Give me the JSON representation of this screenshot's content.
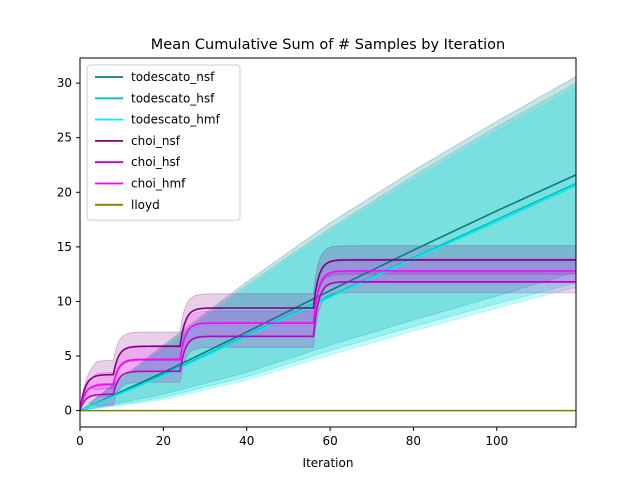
{
  "chart_data": {
    "type": "line",
    "title": "Mean Cumulative Sum of # Samples by Iteration",
    "xlabel": "Iteration",
    "ylabel": "",
    "xlim": [
      0,
      119
    ],
    "ylim": [
      -1.5,
      32.3
    ],
    "xticks": [
      0,
      20,
      40,
      60,
      80,
      100
    ],
    "yticks": [
      0,
      5,
      10,
      15,
      20,
      25,
      30
    ],
    "grid": false,
    "legend_position": "top-left",
    "series": [
      {
        "name": "todescato_nsf",
        "color": "#008080",
        "points": [
          [
            0,
            0
          ],
          [
            20,
            3.5
          ],
          [
            40,
            7.2
          ],
          [
            60,
            11.0
          ],
          [
            80,
            14.7
          ],
          [
            100,
            18.3
          ],
          [
            119,
            21.6
          ]
        ],
        "band_upper": [
          [
            0,
            0
          ],
          [
            20,
            6.0
          ],
          [
            40,
            11.8
          ],
          [
            60,
            17.2
          ],
          [
            80,
            22.0
          ],
          [
            100,
            26.5
          ],
          [
            119,
            30.6
          ]
        ],
        "band_lower": [
          [
            0,
            0
          ],
          [
            20,
            1.5
          ],
          [
            40,
            3.5
          ],
          [
            60,
            6.0
          ],
          [
            80,
            8.3
          ],
          [
            100,
            10.5
          ],
          [
            119,
            12.7
          ]
        ]
      },
      {
        "name": "todescato_hsf",
        "color": "#00bfbf",
        "points": [
          [
            0,
            0
          ],
          [
            20,
            3.3
          ],
          [
            40,
            6.9
          ],
          [
            60,
            10.5
          ],
          [
            80,
            14.0
          ],
          [
            100,
            17.5
          ],
          [
            119,
            20.8
          ]
        ],
        "band_upper": [
          [
            0,
            0
          ],
          [
            20,
            5.8
          ],
          [
            40,
            11.5
          ],
          [
            60,
            16.7
          ],
          [
            80,
            21.5
          ],
          [
            100,
            26.0
          ],
          [
            119,
            30.0
          ]
        ],
        "band_lower": [
          [
            0,
            0
          ],
          [
            20,
            1.2
          ],
          [
            40,
            3.1
          ],
          [
            60,
            5.5
          ],
          [
            80,
            7.7
          ],
          [
            100,
            9.8
          ],
          [
            119,
            11.7
          ]
        ]
      },
      {
        "name": "todescato_hmf",
        "color": "#00eeee",
        "points": [
          [
            0,
            0
          ],
          [
            20,
            3.2
          ],
          [
            40,
            6.8
          ],
          [
            60,
            10.4
          ],
          [
            80,
            13.9
          ],
          [
            100,
            17.3
          ],
          [
            119,
            20.6
          ]
        ],
        "band_upper": [
          [
            0,
            0
          ],
          [
            20,
            5.6
          ],
          [
            40,
            11.2
          ],
          [
            60,
            16.4
          ],
          [
            80,
            21.1
          ],
          [
            100,
            25.6
          ],
          [
            119,
            29.6
          ]
        ],
        "band_lower": [
          [
            0,
            0
          ],
          [
            20,
            1.0
          ],
          [
            40,
            2.8
          ],
          [
            60,
            5.1
          ],
          [
            80,
            7.3
          ],
          [
            100,
            9.4
          ],
          [
            119,
            11.3
          ]
        ]
      },
      {
        "name": "choi_nsf",
        "color": "#800080",
        "steps": [
          [
            0,
            0,
            3.3
          ],
          [
            8,
            3.3,
            5.9
          ],
          [
            24,
            5.9,
            9.4
          ],
          [
            56,
            9.4,
            13.8
          ]
        ],
        "band_width": 1.3
      },
      {
        "name": "choi_hsf",
        "color": "#bf00bf",
        "steps": [
          [
            0,
            0,
            1.5
          ],
          [
            8,
            1.5,
            3.6
          ],
          [
            24,
            3.6,
            6.8
          ],
          [
            56,
            6.8,
            11.8
          ]
        ],
        "band_width": 1.0
      },
      {
        "name": "choi_hmf",
        "color": "#ff00ff",
        "steps": [
          [
            0,
            0,
            2.4
          ],
          [
            8,
            2.4,
            4.7
          ],
          [
            24,
            4.7,
            8.0
          ],
          [
            56,
            8.0,
            12.8
          ]
        ],
        "band_width": 1.1
      },
      {
        "name": "lloyd",
        "color": "#808000",
        "points": [
          [
            0,
            0
          ],
          [
            119,
            0
          ]
        ]
      }
    ]
  }
}
